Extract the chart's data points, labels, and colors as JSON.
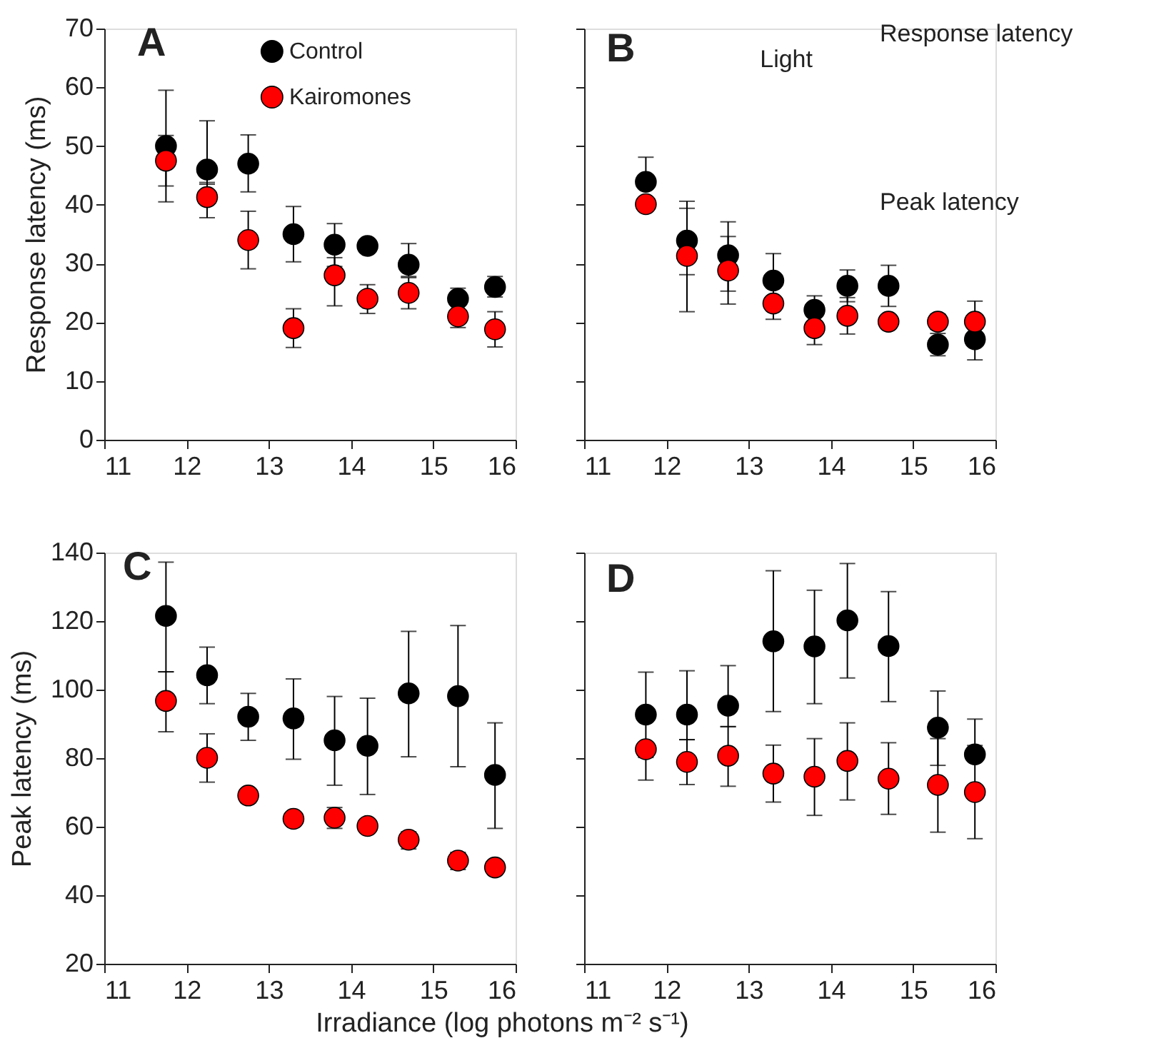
{
  "chart_data": [
    {
      "type": "scatter",
      "title": "A",
      "ylabel": "Response latency (ms)",
      "x": [
        11.75,
        12.25,
        12.75,
        13.3,
        13.8,
        14.2,
        14.7,
        15.3,
        15.75
      ],
      "xlim": [
        11,
        16
      ],
      "xticks": [
        11,
        12,
        13,
        14,
        15,
        16
      ],
      "ylim": [
        0,
        70
      ],
      "yticks": [
        0,
        10,
        20,
        30,
        40,
        50,
        60,
        70
      ],
      "marker": "circle",
      "legend": "top",
      "series": [
        {
          "name": "Control",
          "color": "#000000",
          "values": [
            50,
            46,
            47,
            35,
            33.2,
            33,
            29.8,
            24,
            26
          ],
          "errors": [
            [
              43.2,
              59.5
            ],
            [
              43.5,
              54.3
            ],
            [
              42.2,
              51.9
            ],
            [
              30.3,
              39.7
            ],
            [
              29.5,
              36.8
            ],
            null,
            [
              27.8,
              33.4
            ],
            [
              23,
              25.8
            ],
            [
              24.3,
              27.8
            ]
          ]
        },
        {
          "name": "Kairomones",
          "color": "#ff0000",
          "values": [
            47.5,
            41.3,
            34,
            19,
            28,
            24,
            25,
            21,
            18.8
          ],
          "errors": [
            [
              40.5,
              51.8
            ],
            [
              37.8,
              43.8
            ],
            [
              29.1,
              38.9
            ],
            [
              15.7,
              22.3
            ],
            [
              22.8,
              31
            ],
            [
              21.5,
              26.4
            ],
            [
              22.3,
              27.6
            ],
            [
              19.1,
              23
            ],
            [
              15.8,
              21.8
            ]
          ]
        }
      ]
    },
    {
      "type": "scatter",
      "title": "B",
      "x": [
        11.75,
        12.25,
        12.75,
        13.3,
        13.8,
        14.2,
        14.7,
        15.3,
        15.75
      ],
      "xlim": [
        11,
        16
      ],
      "xticks": [
        11,
        12,
        13,
        14,
        15,
        16
      ],
      "ylim": [
        0,
        70
      ],
      "yticks": [
        {
          "value": 0,
          "label": null
        },
        {
          "value": 10,
          "label": null
        },
        {
          "value": 20,
          "label": null
        },
        {
          "value": 30,
          "label": null
        },
        {
          "value": 40,
          "label": null
        },
        {
          "value": 50,
          "label": null
        },
        {
          "value": 60,
          "label": null
        },
        {
          "value": 70,
          "label": null
        }
      ],
      "tick_labels": "x",
      "marker": "circle",
      "annotations": [
        "Light",
        "Response latency",
        "Peak latency"
      ],
      "series": [
        {
          "color": "#000000",
          "values": [
            43.9,
            33.9,
            31.4,
            27.1,
            22.1,
            26.2,
            26.2,
            16.2,
            17.1
          ],
          "errors": [
            [
              43.9,
              48.1
            ],
            [
              21.8,
              40.6
            ],
            [
              25.3,
              37.1
            ],
            [
              27.1,
              31.7
            ],
            [
              19.7,
              24.5
            ],
            [
              23.5,
              28.9
            ],
            [
              22.7,
              29.7
            ],
            [
              14.3,
              18.1
            ],
            [
              13.6,
              17.1
            ]
          ]
        },
        {
          "color": "#ff0000",
          "values": [
            40.1,
            31.3,
            28.8,
            23.2,
            19,
            21.1,
            20.1,
            20.1,
            20.1
          ],
          "errors": [
            null,
            [
              28.1,
              39.4
            ],
            [
              23.1,
              34.6
            ],
            [
              20.5,
              25.9
            ],
            [
              16.2,
              19
            ],
            [
              18,
              24.2
            ],
            null,
            [
              18.8,
              21.4
            ],
            [
              20.1,
              23.6
            ]
          ]
        }
      ]
    },
    {
      "type": "scatter",
      "title": "C",
      "ylabel": "Peak latency (ms)",
      "xlabel": "Irradiance (log photons m⁻² s⁻¹)",
      "x": [
        11.75,
        12.25,
        12.75,
        13.3,
        13.8,
        14.2,
        14.7,
        15.3,
        15.75
      ],
      "xlim": [
        11,
        16
      ],
      "xticks": [
        11,
        12,
        13,
        14,
        15,
        16
      ],
      "ylim": [
        20,
        140
      ],
      "yticks": [
        20,
        40,
        60,
        80,
        100,
        120,
        140
      ],
      "marker": "circle",
      "series": [
        {
          "color": "#000000",
          "values": [
            121.5,
            104.2,
            92.1,
            91.6,
            85.2,
            83.6,
            98.9,
            98.1,
            75.1
          ],
          "errors": [
            [
              105.2,
              137.2
            ],
            [
              95.9,
              112.4
            ],
            [
              85.2,
              98.9
            ],
            [
              79.7,
              103.1
            ],
            [
              72.1,
              98
            ],
            [
              69.4,
              97.5
            ],
            [
              80.4,
              117
            ],
            [
              77.5,
              118.7
            ],
            [
              59.5,
              90.3
            ]
          ]
        },
        {
          "color": "#ff0000",
          "values": [
            96.7,
            80.1,
            69.1,
            62.3,
            62.6,
            60.2,
            56.2,
            50.1,
            48.1
          ],
          "errors": [
            [
              87.7,
              105.2
            ],
            [
              73,
              87.1
            ],
            [
              67,
              71
            ],
            null,
            [
              59.5,
              65.6
            ],
            null,
            [
              53.5,
              58.5
            ],
            [
              47.5,
              52.5
            ],
            null
          ]
        }
      ]
    },
    {
      "type": "scatter",
      "title": "D",
      "x": [
        11.75,
        12.25,
        12.75,
        13.3,
        13.8,
        14.2,
        14.7,
        15.3,
        15.75
      ],
      "xlim": [
        11,
        16
      ],
      "xticks": [
        11,
        12,
        13,
        14,
        15,
        16
      ],
      "ylim": [
        20,
        140
      ],
      "yticks": [
        {
          "value": 20,
          "label": null
        },
        {
          "value": 40,
          "label": null
        },
        {
          "value": 60,
          "label": null
        },
        {
          "value": 80,
          "label": null
        },
        {
          "value": 100,
          "label": null
        },
        {
          "value": 120,
          "label": null
        },
        {
          "value": 140,
          "label": null
        }
      ],
      "tick_labels": "x",
      "marker": "circle",
      "series": [
        {
          "color": "#000000",
          "values": [
            92.7,
            92.7,
            95.3,
            114.1,
            112.6,
            120.2,
            112.7,
            88.9,
            81.1
          ],
          "errors": [
            [
              80.2,
              105.1
            ],
            [
              85.4,
              105.5
            ],
            [
              89.2,
              107
            ],
            [
              93.6,
              134.7
            ],
            [
              95.9,
              129
            ],
            [
              103.4,
              136.8
            ],
            [
              96.5,
              128.6
            ],
            [
              77.9,
              99.6
            ],
            [
              81.1,
              91.4
            ]
          ]
        },
        {
          "color": "#ff0000",
          "values": [
            82.6,
            78.9,
            80.7,
            75.5,
            74.6,
            79.2,
            74,
            72.2,
            70.1
          ],
          "errors": [
            [
              73.6,
              82.6
            ],
            [
              72.3,
              85.4
            ],
            [
              71.8,
              89.2
            ],
            [
              67.2,
              83.8
            ],
            [
              63.3,
              85.7
            ],
            [
              67.8,
              90.3
            ],
            [
              63.6,
              84.5
            ],
            [
              58.4,
              85.7
            ],
            [
              56.5,
              83.7
            ]
          ]
        }
      ]
    }
  ]
}
